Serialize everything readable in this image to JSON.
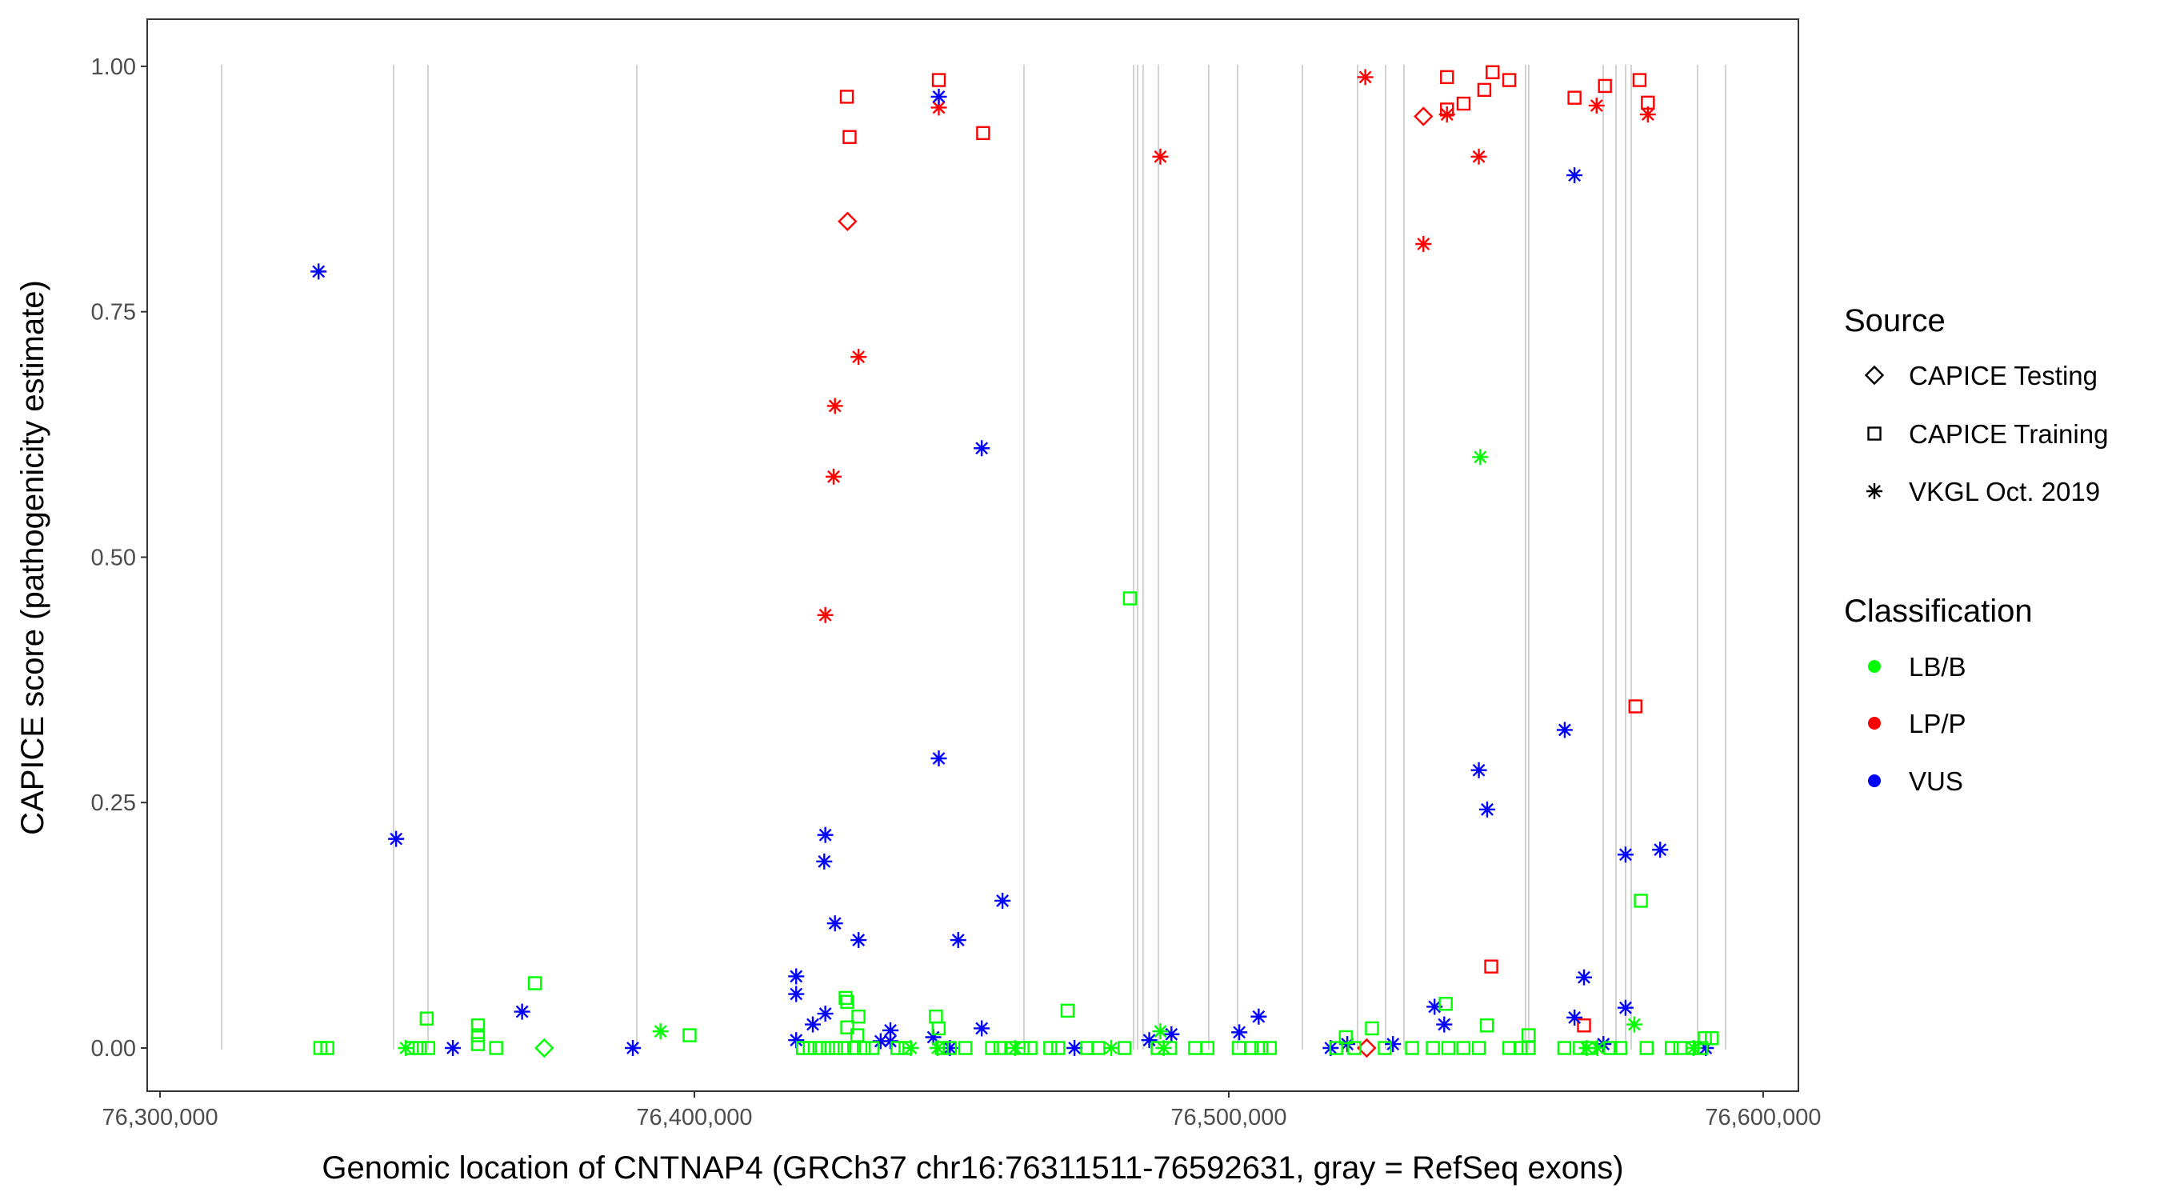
{
  "chart_data": {
    "type": "scatter",
    "xlabel": "Genomic location of CNTNAP4 (GRCh37 chr16:76311511-76592631, gray = RefSeq exons)",
    "ylabel": "CAPICE score (pathogenicity estimate)",
    "xlim": [
      76297600,
      76606600
    ],
    "ylim": [
      -0.044,
      1.048
    ],
    "xticks": [
      76300000,
      76400000,
      76500000,
      76600000
    ],
    "xtick_labels": [
      "76,300,000",
      "76,400,000",
      "76,500,000",
      "76,600,000"
    ],
    "yticks": [
      0,
      0.25,
      0.5,
      0.75,
      1.0
    ],
    "ytick_labels": [
      "0.00",
      "0.25",
      "0.50",
      "0.75",
      "1.00"
    ],
    "grid": false,
    "exon_positions": [
      76311527,
      76343710,
      76350150,
      76389220,
      76461680,
      76482190,
      76482930,
      76483980,
      76486830,
      76496250,
      76501650,
      76513770,
      76524100,
      76529340,
      76532790,
      76555540,
      76556140,
      76570060,
      76572460,
      76574260,
      76575310,
      76587730,
      76592970
    ],
    "exon_color": "#c8c8c8",
    "legend_placement": "right",
    "legend": {
      "source_title": "Source",
      "source_entries": [
        {
          "label": "CAPICE Testing",
          "shape": "diamond"
        },
        {
          "label": "CAPICE Training",
          "shape": "square"
        },
        {
          "label": "VKGL Oct. 2019",
          "shape": "asterisk"
        }
      ],
      "class_title": "Classification",
      "class_entries": [
        {
          "label": "LB/B",
          "color": "#00ff00"
        },
        {
          "label": "LP/P",
          "color": "#ff0000"
        },
        {
          "label": "VUS",
          "color": "#0000ff"
        }
      ]
    },
    "series": [
      {
        "source": "CAPICE Training",
        "classification": "LP/P",
        "points": [
          [
            76428530,
            0.969
          ],
          [
            76429040,
            0.928
          ],
          [
            76445740,
            0.986
          ],
          [
            76454030,
            0.932
          ],
          [
            76540840,
            0.989
          ],
          [
            76540840,
            0.956
          ],
          [
            76543940,
            0.962
          ],
          [
            76547830,
            0.976
          ],
          [
            76549380,
            0.994
          ],
          [
            76552490,
            0.986
          ],
          [
            76564700,
            0.968
          ],
          [
            76570400,
            0.98
          ],
          [
            76576870,
            0.986
          ],
          [
            76578430,
            0.963
          ],
          [
            76576100,
            0.348
          ],
          [
            76549120,
            0.083
          ],
          [
            76566480,
            0.023
          ]
        ]
      },
      {
        "source": "CAPICE Testing",
        "classification": "LP/P",
        "points": [
          [
            76428650,
            0.842
          ],
          [
            76536430,
            0.949
          ],
          [
            76525810,
            0.0
          ]
        ]
      },
      {
        "source": "VKGL Oct. 2019",
        "classification": "LP/P",
        "points": [
          [
            76445740,
            0.958
          ],
          [
            76430720,
            0.704
          ],
          [
            76426310,
            0.654
          ],
          [
            76426050,
            0.582
          ],
          [
            76424500,
            0.441
          ],
          [
            76487200,
            0.908
          ],
          [
            76525550,
            0.989
          ],
          [
            76540840,
            0.951
          ],
          [
            76546800,
            0.908
          ],
          [
            76536430,
            0.819
          ],
          [
            76568840,
            0.96
          ],
          [
            76578430,
            0.951
          ]
        ]
      },
      {
        "source": "VKGL Oct. 2019",
        "classification": "VUS",
        "points": [
          [
            76329670,
            0.791
          ],
          [
            76344180,
            0.213
          ],
          [
            76354800,
            0.0
          ],
          [
            76367760,
            0.037
          ],
          [
            76388480,
            0.0
          ],
          [
            76419050,
            0.073
          ],
          [
            76419050,
            0.055
          ],
          [
            76419050,
            0.008
          ],
          [
            76422160,
            0.024
          ],
          [
            76424500,
            0.217
          ],
          [
            76424300,
            0.19
          ],
          [
            76424500,
            0.035
          ],
          [
            76426310,
            0.127
          ],
          [
            76430720,
            0.11
          ],
          [
            76434860,
            0.007
          ],
          [
            76436680,
            0.018
          ],
          [
            76436680,
            0.007
          ],
          [
            76444700,
            0.011
          ],
          [
            76445740,
            0.295
          ],
          [
            76445740,
            0.969
          ],
          [
            76447810,
            0.0
          ],
          [
            76449370,
            0.11
          ],
          [
            76453770,
            0.611
          ],
          [
            76453770,
            0.02
          ],
          [
            76457660,
            0.15
          ],
          [
            76471130,
            0.0
          ],
          [
            76485120,
            0.008
          ],
          [
            76489270,
            0.014
          ],
          [
            76501970,
            0.016
          ],
          [
            76505600,
            0.032
          ],
          [
            76519070,
            0.0
          ],
          [
            76522180,
            0.004
          ],
          [
            76530730,
            0.004
          ],
          [
            76538510,
            0.042
          ],
          [
            76540320,
            0.024
          ],
          [
            76546800,
            0.283
          ],
          [
            76548360,
            0.243
          ],
          [
            76562870,
            0.324
          ],
          [
            76564700,
            0.889
          ],
          [
            76564700,
            0.031
          ],
          [
            76566480,
            0.072
          ],
          [
            76570110,
            0.004
          ],
          [
            76574250,
            0.197
          ],
          [
            76574250,
            0.041
          ],
          [
            76580730,
            0.202
          ],
          [
            76589280,
            0.0
          ]
        ]
      },
      {
        "source": "CAPICE Training",
        "classification": "LB/B",
        "points": [
          [
            76330000,
            0.0
          ],
          [
            76331300,
            0.0
          ],
          [
            76347100,
            0.0
          ],
          [
            76348600,
            0.0
          ],
          [
            76350200,
            0.0
          ],
          [
            76349900,
            0.03
          ],
          [
            76359500,
            0.023
          ],
          [
            76359500,
            0.013
          ],
          [
            76359500,
            0.004
          ],
          [
            76362900,
            0.0
          ],
          [
            76370160,
            0.066
          ],
          [
            76399100,
            0.013
          ],
          [
            76420300,
            0.0
          ],
          [
            76421600,
            0.0
          ],
          [
            76423400,
            0.0
          ],
          [
            76425000,
            0.0
          ],
          [
            76426500,
            0.0
          ],
          [
            76428100,
            0.0
          ],
          [
            76429900,
            0.0
          ],
          [
            76431700,
            0.0
          ],
          [
            76433300,
            0.0
          ],
          [
            76438000,
            0.0
          ],
          [
            76439500,
            0.0
          ],
          [
            76428300,
            0.051
          ],
          [
            76428600,
            0.047
          ],
          [
            76430700,
            0.032
          ],
          [
            76428600,
            0.021
          ],
          [
            76430500,
            0.013
          ],
          [
            76445200,
            0.032
          ],
          [
            76445700,
            0.02
          ],
          [
            76446300,
            0.0
          ],
          [
            76447800,
            0.0
          ],
          [
            76450700,
            0.0
          ],
          [
            76455700,
            0.0
          ],
          [
            76457300,
            0.0
          ],
          [
            76459300,
            0.0
          ],
          [
            76461400,
            0.0
          ],
          [
            76462900,
            0.0
          ],
          [
            76466600,
            0.0
          ],
          [
            76468100,
            0.0
          ],
          [
            76469840,
            0.038
          ],
          [
            76473500,
            0.0
          ],
          [
            76475600,
            0.0
          ],
          [
            76481500,
            0.458
          ],
          [
            76480500,
            0.0
          ],
          [
            76486700,
            0.0
          ],
          [
            76489000,
            0.0
          ],
          [
            76493700,
            0.0
          ],
          [
            76496000,
            0.0
          ],
          [
            76501900,
            0.0
          ],
          [
            76504300,
            0.0
          ],
          [
            76506100,
            0.0
          ],
          [
            76507700,
            0.0
          ],
          [
            76520100,
            0.0
          ],
          [
            76523500,
            0.0
          ],
          [
            76521900,
            0.011
          ],
          [
            76526800,
            0.02
          ],
          [
            76529200,
            0.0
          ],
          [
            76534300,
            0.0
          ],
          [
            76538200,
            0.0
          ],
          [
            76540600,
            0.045
          ],
          [
            76541100,
            0.0
          ],
          [
            76543900,
            0.0
          ],
          [
            76546800,
            0.0
          ],
          [
            76548300,
            0.023
          ],
          [
            76552500,
            0.0
          ],
          [
            76554600,
            0.0
          ],
          [
            76556100,
            0.0
          ],
          [
            76556100,
            0.013
          ],
          [
            76562800,
            0.0
          ],
          [
            76565700,
            0.0
          ],
          [
            76567500,
            0.0
          ],
          [
            76571400,
            0.0
          ],
          [
            76573300,
            0.0
          ],
          [
            76577130,
            0.15
          ],
          [
            76578200,
            0.0
          ],
          [
            76582900,
            0.0
          ],
          [
            76584500,
            0.0
          ],
          [
            76586800,
            0.0
          ],
          [
            76588400,
            0.0
          ],
          [
            76589100,
            0.01
          ],
          [
            76590400,
            0.01
          ]
        ]
      },
      {
        "source": "CAPICE Testing",
        "classification": "LB/B",
        "points": [
          [
            76371900,
            0.0
          ]
        ]
      },
      {
        "source": "VKGL Oct. 2019",
        "classification": "LB/B",
        "points": [
          [
            76346000,
            0.0
          ],
          [
            76393660,
            0.017
          ],
          [
            76440500,
            0.0
          ],
          [
            76445500,
            0.0
          ],
          [
            76460000,
            0.0
          ],
          [
            76478000,
            0.0
          ],
          [
            76487200,
            0.017
          ],
          [
            76487800,
            0.0
          ],
          [
            76547060,
            0.602
          ],
          [
            76567000,
            0.0
          ],
          [
            76575900,
            0.024
          ],
          [
            76569000,
            0.0
          ],
          [
            76587000,
            0.0
          ]
        ]
      }
    ]
  }
}
